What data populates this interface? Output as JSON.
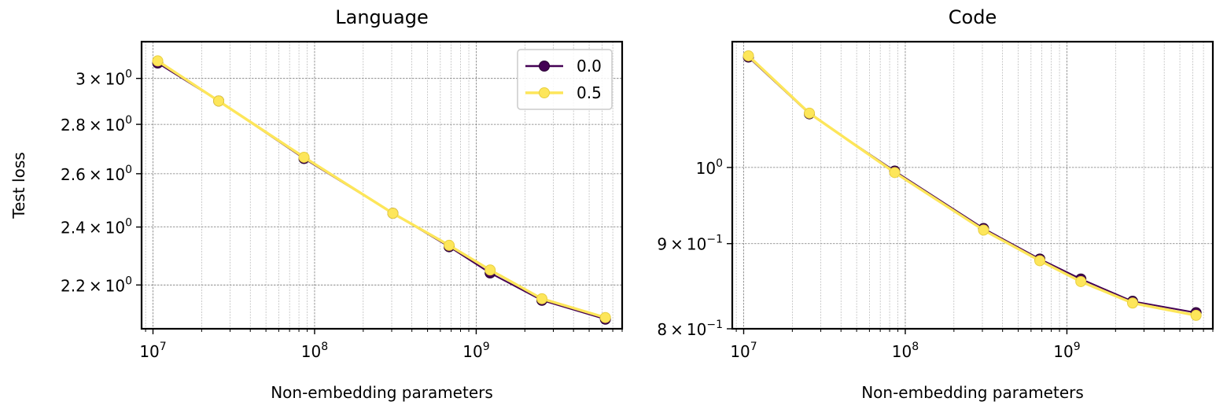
{
  "chart_data": [
    {
      "type": "line",
      "title": "Language",
      "xlabel": "Non-embedding parameters",
      "ylabel": "Test loss",
      "xscale": "log",
      "yscale": "log",
      "xlim": [
        8500000.0,
        8000000000.0
      ],
      "ylim": [
        2.06,
        3.17
      ],
      "grid": true,
      "x_ticks": [
        {
          "value": 10000000.0,
          "base": "10",
          "exp": "7"
        },
        {
          "value": 100000000.0,
          "base": "10",
          "exp": "8"
        },
        {
          "value": 1000000000.0,
          "base": "10",
          "exp": "9"
        }
      ],
      "y_ticks": [
        {
          "value": 3.0,
          "mant": "3",
          "base": "10",
          "exp": "0"
        },
        {
          "value": 2.8,
          "mant": "2.8",
          "base": "10",
          "exp": "0"
        },
        {
          "value": 2.6,
          "mant": "2.6",
          "base": "10",
          "exp": "0"
        },
        {
          "value": 2.4,
          "mant": "2.4",
          "base": "10",
          "exp": "0"
        },
        {
          "value": 2.2,
          "mant": "2.2",
          "base": "10",
          "exp": "0"
        }
      ],
      "legend": {
        "position": "top-right",
        "entries": [
          "0.0",
          "0.5"
        ]
      },
      "x": [
        10700000.0,
        25500000.0,
        86000000.0,
        305000000.0,
        680000000.0,
        1220000000.0,
        2550000000.0,
        6300000000.0
      ],
      "series": [
        {
          "name": "0.0",
          "color": "#440154",
          "values": [
            3.07,
            2.9,
            2.66,
            2.45,
            2.33,
            2.24,
            2.15,
            2.09
          ]
        },
        {
          "name": "0.5",
          "color": "#fde65a",
          "values": [
            3.08,
            2.9,
            2.665,
            2.45,
            2.335,
            2.25,
            2.155,
            2.095
          ]
        }
      ]
    },
    {
      "type": "line",
      "title": "Code",
      "xlabel": "Non-embedding parameters",
      "ylabel": "",
      "xscale": "log",
      "yscale": "log",
      "xlim": [
        8500000.0,
        8000000000.0
      ],
      "ylim": [
        0.8,
        1.19
      ],
      "grid": true,
      "x_ticks": [
        {
          "value": 10000000.0,
          "base": "10",
          "exp": "7"
        },
        {
          "value": 100000000.0,
          "base": "10",
          "exp": "8"
        },
        {
          "value": 1000000000.0,
          "base": "10",
          "exp": "9"
        }
      ],
      "y_ticks": [
        {
          "value": 1.0,
          "mant": "",
          "base": "10",
          "exp": "0"
        },
        {
          "value": 0.9,
          "mant": "9",
          "base": "10",
          "exp": "−1"
        },
        {
          "value": 0.8,
          "mant": "8",
          "base": "10",
          "exp": "−1"
        }
      ],
      "legend": null,
      "x": [
        10700000.0,
        25500000.0,
        86000000.0,
        305000000.0,
        680000000.0,
        1220000000.0,
        2550000000.0,
        6300000000.0
      ],
      "series": [
        {
          "name": "0.0",
          "color": "#440154",
          "values": [
            1.165,
            1.077,
            0.995,
            0.919,
            0.881,
            0.857,
            0.831,
            0.818
          ]
        },
        {
          "name": "0.5",
          "color": "#fde65a",
          "values": [
            1.167,
            1.078,
            0.993,
            0.917,
            0.879,
            0.854,
            0.829,
            0.815
          ]
        }
      ]
    }
  ]
}
